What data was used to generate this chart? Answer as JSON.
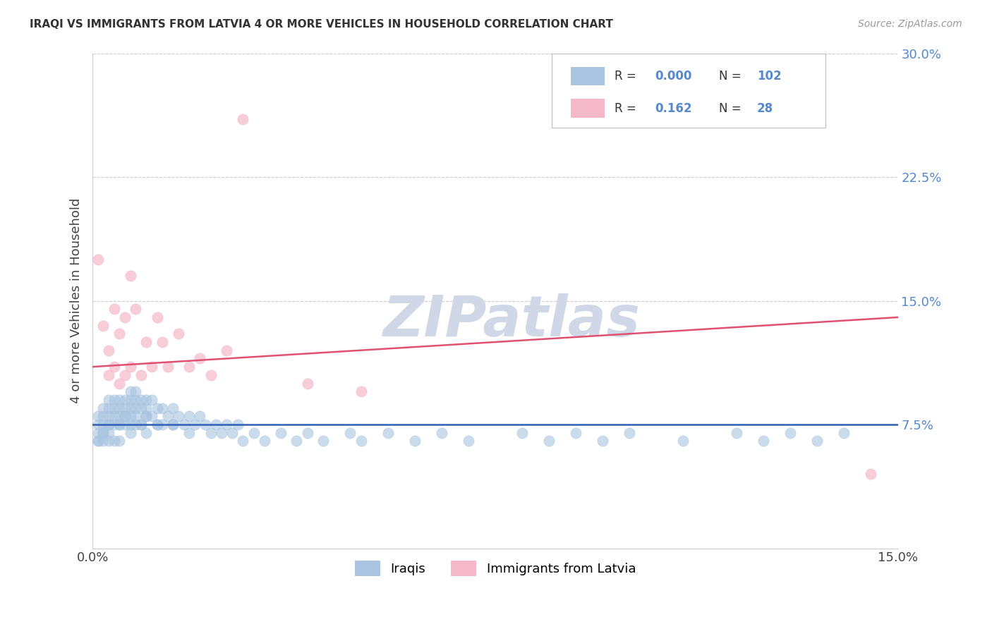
{
  "title": "IRAQI VS IMMIGRANTS FROM LATVIA 4 OR MORE VEHICLES IN HOUSEHOLD CORRELATION CHART",
  "source": "Source: ZipAtlas.com",
  "ylabel": "4 or more Vehicles in Household",
  "xlim": [
    0.0,
    0.15
  ],
  "ylim": [
    0.0,
    0.3
  ],
  "ytick_values": [
    0.075,
    0.15,
    0.225,
    0.3
  ],
  "xtick_values": [
    0.0,
    0.15
  ],
  "iraqi_color": "#a8c4e0",
  "latvia_color": "#f4b8c8",
  "trend_iraqi_color": "#3060b0",
  "trend_latvia_color": "#e05070",
  "watermark": "ZIPatlas",
  "watermark_color": "#d0d8e8",
  "background_color": "#ffffff",
  "tick_label_color": "#5588cc",
  "iraqi_x": [
    0.001,
    0.001,
    0.001,
    0.001,
    0.002,
    0.002,
    0.002,
    0.002,
    0.002,
    0.003,
    0.003,
    0.003,
    0.003,
    0.003,
    0.003,
    0.004,
    0.004,
    0.004,
    0.004,
    0.005,
    0.005,
    0.005,
    0.005,
    0.005,
    0.006,
    0.006,
    0.006,
    0.006,
    0.007,
    0.007,
    0.007,
    0.007,
    0.007,
    0.008,
    0.008,
    0.008,
    0.008,
    0.009,
    0.009,
    0.009,
    0.01,
    0.01,
    0.01,
    0.01,
    0.011,
    0.011,
    0.012,
    0.012,
    0.013,
    0.013,
    0.014,
    0.015,
    0.015,
    0.016,
    0.017,
    0.018,
    0.018,
    0.019,
    0.02,
    0.021,
    0.022,
    0.023,
    0.024,
    0.025,
    0.026,
    0.027,
    0.028,
    0.03,
    0.032,
    0.035,
    0.038,
    0.04,
    0.043,
    0.048,
    0.05,
    0.055,
    0.06,
    0.065,
    0.07,
    0.08,
    0.085,
    0.09,
    0.095,
    0.1,
    0.11,
    0.12,
    0.125,
    0.13,
    0.135,
    0.14,
    0.001,
    0.002,
    0.003,
    0.004,
    0.005,
    0.006,
    0.007,
    0.008,
    0.009,
    0.01,
    0.012,
    0.015
  ],
  "iraqi_y": [
    0.08,
    0.075,
    0.07,
    0.065,
    0.085,
    0.08,
    0.075,
    0.07,
    0.065,
    0.09,
    0.085,
    0.08,
    0.075,
    0.07,
    0.065,
    0.09,
    0.085,
    0.075,
    0.065,
    0.09,
    0.085,
    0.08,
    0.075,
    0.065,
    0.09,
    0.085,
    0.08,
    0.075,
    0.095,
    0.09,
    0.085,
    0.08,
    0.07,
    0.095,
    0.09,
    0.085,
    0.075,
    0.09,
    0.085,
    0.075,
    0.09,
    0.085,
    0.08,
    0.07,
    0.09,
    0.08,
    0.085,
    0.075,
    0.085,
    0.075,
    0.08,
    0.085,
    0.075,
    0.08,
    0.075,
    0.08,
    0.07,
    0.075,
    0.08,
    0.075,
    0.07,
    0.075,
    0.07,
    0.075,
    0.07,
    0.075,
    0.065,
    0.07,
    0.065,
    0.07,
    0.065,
    0.07,
    0.065,
    0.07,
    0.065,
    0.07,
    0.065,
    0.07,
    0.065,
    0.07,
    0.065,
    0.07,
    0.065,
    0.07,
    0.065,
    0.07,
    0.065,
    0.07,
    0.065,
    0.07,
    0.065,
    0.07,
    0.075,
    0.08,
    0.075,
    0.08,
    0.075,
    0.08,
    0.075,
    0.08,
    0.075,
    0.075
  ],
  "latvia_x": [
    0.001,
    0.002,
    0.003,
    0.003,
    0.004,
    0.004,
    0.005,
    0.005,
    0.006,
    0.006,
    0.007,
    0.007,
    0.008,
    0.009,
    0.01,
    0.011,
    0.012,
    0.013,
    0.014,
    0.016,
    0.018,
    0.02,
    0.022,
    0.025,
    0.028,
    0.04,
    0.145,
    0.05
  ],
  "latvia_y": [
    0.175,
    0.135,
    0.12,
    0.105,
    0.145,
    0.11,
    0.13,
    0.1,
    0.14,
    0.105,
    0.165,
    0.11,
    0.145,
    0.105,
    0.125,
    0.11,
    0.14,
    0.125,
    0.11,
    0.13,
    0.11,
    0.115,
    0.105,
    0.12,
    0.26,
    0.1,
    0.045,
    0.095
  ],
  "iraqi_trend_y0": 0.075,
  "iraqi_trend_y1": 0.075,
  "latvia_trend_y0": 0.11,
  "latvia_trend_y1": 0.14
}
